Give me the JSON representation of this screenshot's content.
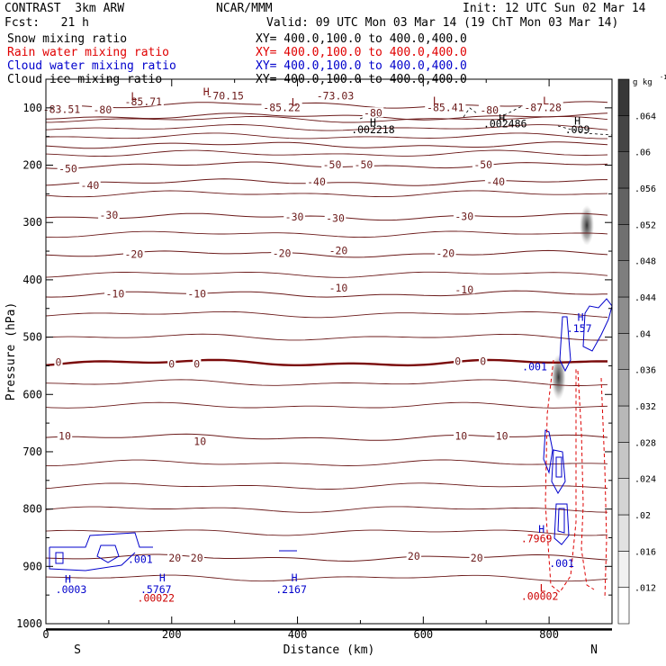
{
  "header": {
    "model": "CONTRAST  3km ARW",
    "center": "NCAR/MMM",
    "init": "Init: 12 UTC Sun 02 Mar 14",
    "fcst": "Fcst:   21 h",
    "valid": "Valid: 09 UTC Mon 03 Mar 14 (19 ChT Mon 03 Mar 14)",
    "fields": [
      {
        "label": "Snow mixing ratio",
        "xy": "XY= 400.0,100.0 to 400.0,400.0",
        "color": "#000000"
      },
      {
        "label": "Rain water mixing ratio",
        "xy": "XY= 400.0,100.0 to 400.0,400.0",
        "color": "#e00000"
      },
      {
        "label": "Cloud water mixing ratio",
        "xy": "XY= 400.0,100.0 to 400.0,400.0",
        "color": "#0000cc"
      },
      {
        "label": "Cloud ice mixing ratio",
        "xy": "XY= 400.0,100.0 to 400.0,400.0",
        "color": "#000000"
      }
    ]
  },
  "chart_data": {
    "type": "cross-section contour",
    "xlabel": "Distance (km)",
    "ylabel": "Pressure (hPa)",
    "xlim": [
      0,
      900
    ],
    "ylim": [
      1000,
      50
    ],
    "x_ticks": [
      0,
      200,
      400,
      600,
      800
    ],
    "y_ticks": [
      100,
      200,
      300,
      400,
      500,
      600,
      700,
      800,
      900,
      1000
    ],
    "x_end_labels": {
      "left": "S",
      "right": "N"
    },
    "temperature_contours_C": [
      {
        "value": -80,
        "pressure_hPa": 115
      },
      {
        "value": -70,
        "pressure_hPa": 95
      },
      {
        "value": -60,
        "pressure_hPa": 165
      },
      {
        "value": -50,
        "pressure_hPa": 200
      },
      {
        "value": -40,
        "pressure_hPa": 230
      },
      {
        "value": -30,
        "pressure_hPa": 290
      },
      {
        "value": -20,
        "pressure_hPa": 355
      },
      {
        "value": -10,
        "pressure_hPa": 425
      },
      {
        "value": 0,
        "pressure_hPa": 545
      },
      {
        "value": 10,
        "pressure_hPa": 675
      },
      {
        "value": 20,
        "pressure_hPa": 885
      }
    ],
    "temperature_labels": [
      {
        "text": "-85.71",
        "x": 155,
        "p": 90
      },
      {
        "text": "-70.15",
        "x": 285,
        "p": 80
      },
      {
        "text": "-73.03",
        "x": 460,
        "p": 80
      },
      {
        "text": "-85.22",
        "x": 375,
        "p": 100
      },
      {
        "text": "-85.41",
        "x": 635,
        "p": 100
      },
      {
        "text": "-87.28",
        "x": 790,
        "p": 100
      },
      {
        "text": "-83.51",
        "x": 25,
        "p": 103
      },
      {
        "text": "-80",
        "x": 90,
        "p": 104
      },
      {
        "text": "-80",
        "x": 520,
        "p": 110
      },
      {
        "text": "-80",
        "x": 705,
        "p": 105
      },
      {
        "text": "-50",
        "x": 35,
        "p": 207
      },
      {
        "text": "-50",
        "x": 455,
        "p": 200
      },
      {
        "text": "-50",
        "x": 505,
        "p": 200
      },
      {
        "text": "-50",
        "x": 695,
        "p": 200
      },
      {
        "text": "-40",
        "x": 70,
        "p": 236
      },
      {
        "text": "-40",
        "x": 430,
        "p": 230
      },
      {
        "text": "-40",
        "x": 715,
        "p": 230
      },
      {
        "text": "-30",
        "x": 100,
        "p": 288
      },
      {
        "text": "-30",
        "x": 395,
        "p": 291
      },
      {
        "text": "-30",
        "x": 460,
        "p": 293
      },
      {
        "text": "-30",
        "x": 665,
        "p": 290
      },
      {
        "text": "-20",
        "x": 140,
        "p": 356
      },
      {
        "text": "-20",
        "x": 375,
        "p": 355
      },
      {
        "text": "-20",
        "x": 465,
        "p": 350
      },
      {
        "text": "-20",
        "x": 635,
        "p": 355
      },
      {
        "text": "-10",
        "x": 110,
        "p": 425
      },
      {
        "text": "-10",
        "x": 240,
        "p": 425
      },
      {
        "text": "-10",
        "x": 465,
        "p": 415
      },
      {
        "text": "-10",
        "x": 665,
        "p": 418
      },
      {
        "text": "0",
        "x": 20,
        "p": 545
      },
      {
        "text": "0",
        "x": 200,
        "p": 548
      },
      {
        "text": "0",
        "x": 240,
        "p": 548
      },
      {
        "text": "0",
        "x": 655,
        "p": 543
      },
      {
        "text": "0",
        "x": 695,
        "p": 543
      },
      {
        "text": "10",
        "x": 30,
        "p": 673
      },
      {
        "text": "10",
        "x": 245,
        "p": 683
      },
      {
        "text": "10",
        "x": 660,
        "p": 673
      },
      {
        "text": "10",
        "x": 725,
        "p": 673
      },
      {
        "text": "20",
        "x": 205,
        "p": 886
      },
      {
        "text": "20",
        "x": 240,
        "p": 886
      },
      {
        "text": "20",
        "x": 585,
        "p": 883
      },
      {
        "text": "20",
        "x": 685,
        "p": 886
      }
    ],
    "extrema_labels": [
      {
        "text": "L",
        "x": 140,
        "p": 80,
        "color": "#7a1010"
      },
      {
        "text": "H",
        "x": 255,
        "p": 72,
        "color": "#7a1010"
      },
      {
        "text": "L",
        "x": 395,
        "p": 90,
        "color": "#7a1010"
      },
      {
        "text": "L",
        "x": 620,
        "p": 88,
        "color": "#7a1010"
      },
      {
        "text": "L",
        "x": 795,
        "p": 88,
        "color": "#7a1010"
      },
      {
        "text": "H",
        "x": 520,
        "p": 125,
        "color": "#000000"
      },
      {
        "text": ".002218",
        "x": 520,
        "p": 138,
        "color": "#000000"
      },
      {
        "text": "H",
        "x": 725,
        "p": 118,
        "color": "#000000"
      },
      {
        "text": ".002486",
        "x": 730,
        "p": 128,
        "color": "#000000"
      },
      {
        "text": "H",
        "x": 845,
        "p": 123,
        "color": "#000000"
      },
      {
        "text": ".009",
        "x": 845,
        "p": 138,
        "color": "#000000"
      },
      {
        "text": "H",
        "x": 850,
        "p": 465,
        "color": "#0000cc"
      },
      {
        "text": ".157",
        "x": 848,
        "p": 485,
        "color": "#0000cc"
      },
      {
        "text": ".001",
        "x": 777,
        "p": 552,
        "color": "#0000cc"
      },
      {
        "text": "H",
        "x": 788,
        "p": 835,
        "color": "#0000cc"
      },
      {
        "text": ".7969",
        "x": 780,
        "p": 852,
        "color": "#cc0000"
      },
      {
        "text": ".001",
        "x": 820,
        "p": 895,
        "color": "#0000cc"
      },
      {
        "text": "L",
        "x": 790,
        "p": 938,
        "color": "#cc0000"
      },
      {
        "text": ".00002",
        "x": 785,
        "p": 952,
        "color": "#cc0000"
      },
      {
        "text": ".001",
        "x": 150,
        "p": 888,
        "color": "#0000cc"
      },
      {
        "text": "H",
        "x": 35,
        "p": 922,
        "color": "#0000cc"
      },
      {
        "text": ".0003",
        "x": 40,
        "p": 940,
        "color": "#0000cc"
      },
      {
        "text": "H",
        "x": 185,
        "p": 920,
        "color": "#0000cc"
      },
      {
        "text": ".5767",
        "x": 175,
        "p": 940,
        "color": "#0000cc"
      },
      {
        "text": ".00022",
        "x": 175,
        "p": 955,
        "color": "#cc0000"
      },
      {
        "text": "H",
        "x": 395,
        "p": 920,
        "color": "#0000cc"
      },
      {
        "text": ".2167",
        "x": 390,
        "p": 940,
        "color": "#0000cc"
      }
    ],
    "colorbar": {
      "unit_label": "g kg",
      "unit_exponent": "-1",
      "ticks": [
        ".012",
        ".016",
        ".02",
        ".024",
        ".028",
        ".032",
        ".036",
        ".04",
        ".044",
        ".048",
        ".052",
        ".056",
        ".06",
        ".064"
      ],
      "min": 0.01,
      "max": 0.066
    },
    "snow_shading": [
      {
        "x": 860,
        "p_top": 270,
        "p_bottom": 340,
        "peak": 0.055
      },
      {
        "x": 815,
        "p_top": 530,
        "p_bottom": 610,
        "peak": 0.045
      }
    ]
  }
}
